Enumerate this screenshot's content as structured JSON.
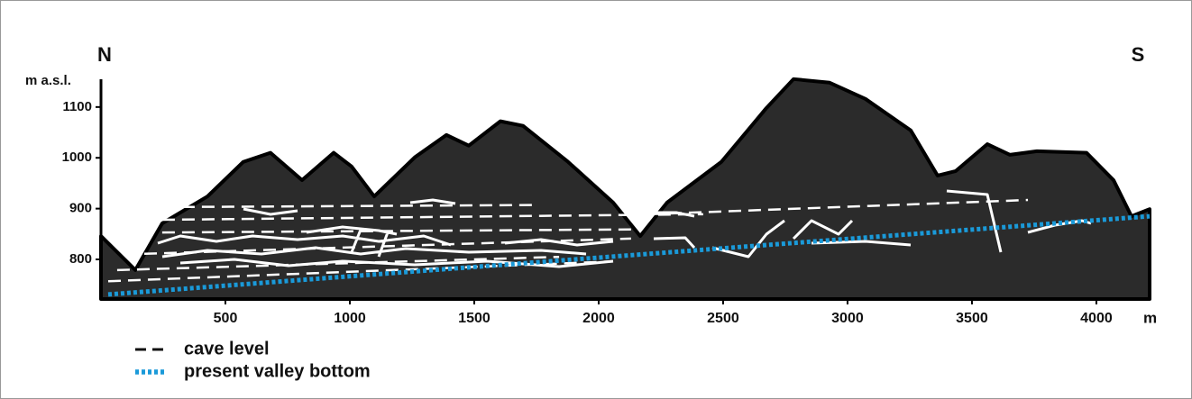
{
  "chart_data": {
    "type": "area",
    "y_label": "m a.s.l.",
    "x_label": "m",
    "annotations": [
      "N",
      "S"
    ],
    "xlim": [
      0,
      4214
    ],
    "ylim": [
      722,
      1160
    ],
    "xticks": [
      500,
      1000,
      1500,
      2000,
      2500,
      3000,
      3500,
      4000
    ],
    "yticks": [
      800,
      900,
      1000,
      1100
    ],
    "profile": {
      "color": "#2b2b2b",
      "x": [
        0,
        138,
        246,
        428,
        572,
        681,
        808,
        935,
        1007,
        1098,
        1261,
        1388,
        1478,
        1605,
        1696,
        1877,
        2058,
        2167,
        2275,
        2493,
        2674,
        2783,
        2928,
        3072,
        3254,
        3362,
        3435,
        3562,
        3652,
        3761,
        3960,
        4069,
        4141,
        4214
      ],
      "values": [
        846,
        779,
        871,
        924,
        992,
        1010,
        956,
        1010,
        983,
        924,
        1001,
        1045,
        1024,
        1072,
        1063,
        992,
        912,
        846,
        912,
        992,
        1098,
        1155,
        1148,
        1116,
        1054,
        965,
        974,
        1027,
        1006,
        1013,
        1010,
        956,
        885,
        899
      ]
    },
    "series": [
      {
        "name": "cave level",
        "color": "#ffffff",
        "style": "dashed",
        "x": [
          246,
          1732,
          null,
          246,
          2420,
          null,
          2203,
          3725,
          null,
          246,
          2130,
          null,
          174,
          2130,
          null,
          65,
          1841,
          null,
          29,
          2058
        ],
        "values": [
          903,
          907,
          null,
          878,
          889,
          null,
          889,
          917,
          null,
          853,
          859,
          null,
          811,
          841,
          null,
          779,
          805,
          null,
          757,
          796
        ]
      },
      {
        "name": "present valley bottom",
        "color": "#1a9ad9",
        "style": "dotted",
        "x": [
          29,
          4214
        ],
        "values": [
          731,
          885
        ]
      }
    ]
  }
}
